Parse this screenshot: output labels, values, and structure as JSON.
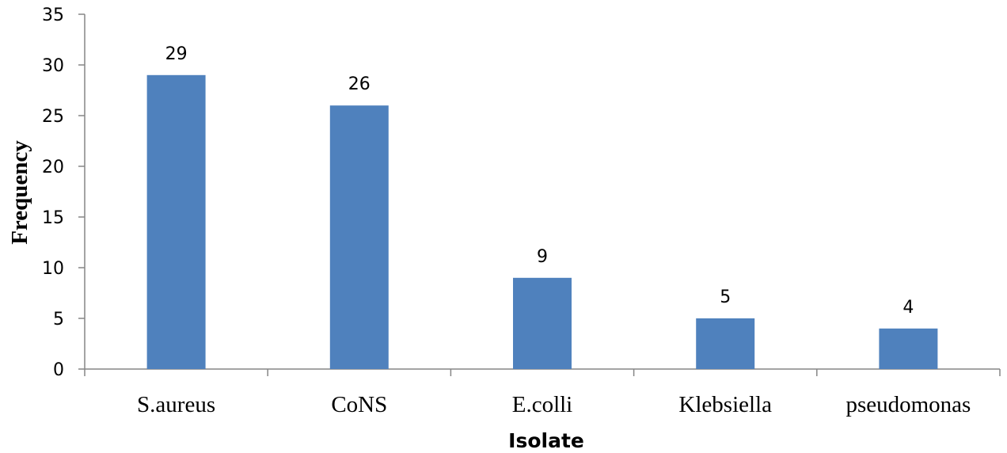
{
  "chart_data": {
    "type": "bar",
    "categories": [
      "S.aureus",
      "CoNS",
      "E.colli",
      "Klebsiella",
      "pseudomonas"
    ],
    "values": [
      29,
      26,
      9,
      5,
      4
    ],
    "data_labels": [
      "29",
      "26",
      "9",
      "5",
      "4"
    ],
    "xlabel": "Isolate",
    "ylabel": "Frequency",
    "ylim": [
      0,
      35
    ],
    "yticks": [
      "0",
      "5",
      "10",
      "15",
      "20",
      "25",
      "30",
      "35"
    ],
    "grid": false,
    "legend": "none",
    "bar_color": "#4f81bd"
  }
}
